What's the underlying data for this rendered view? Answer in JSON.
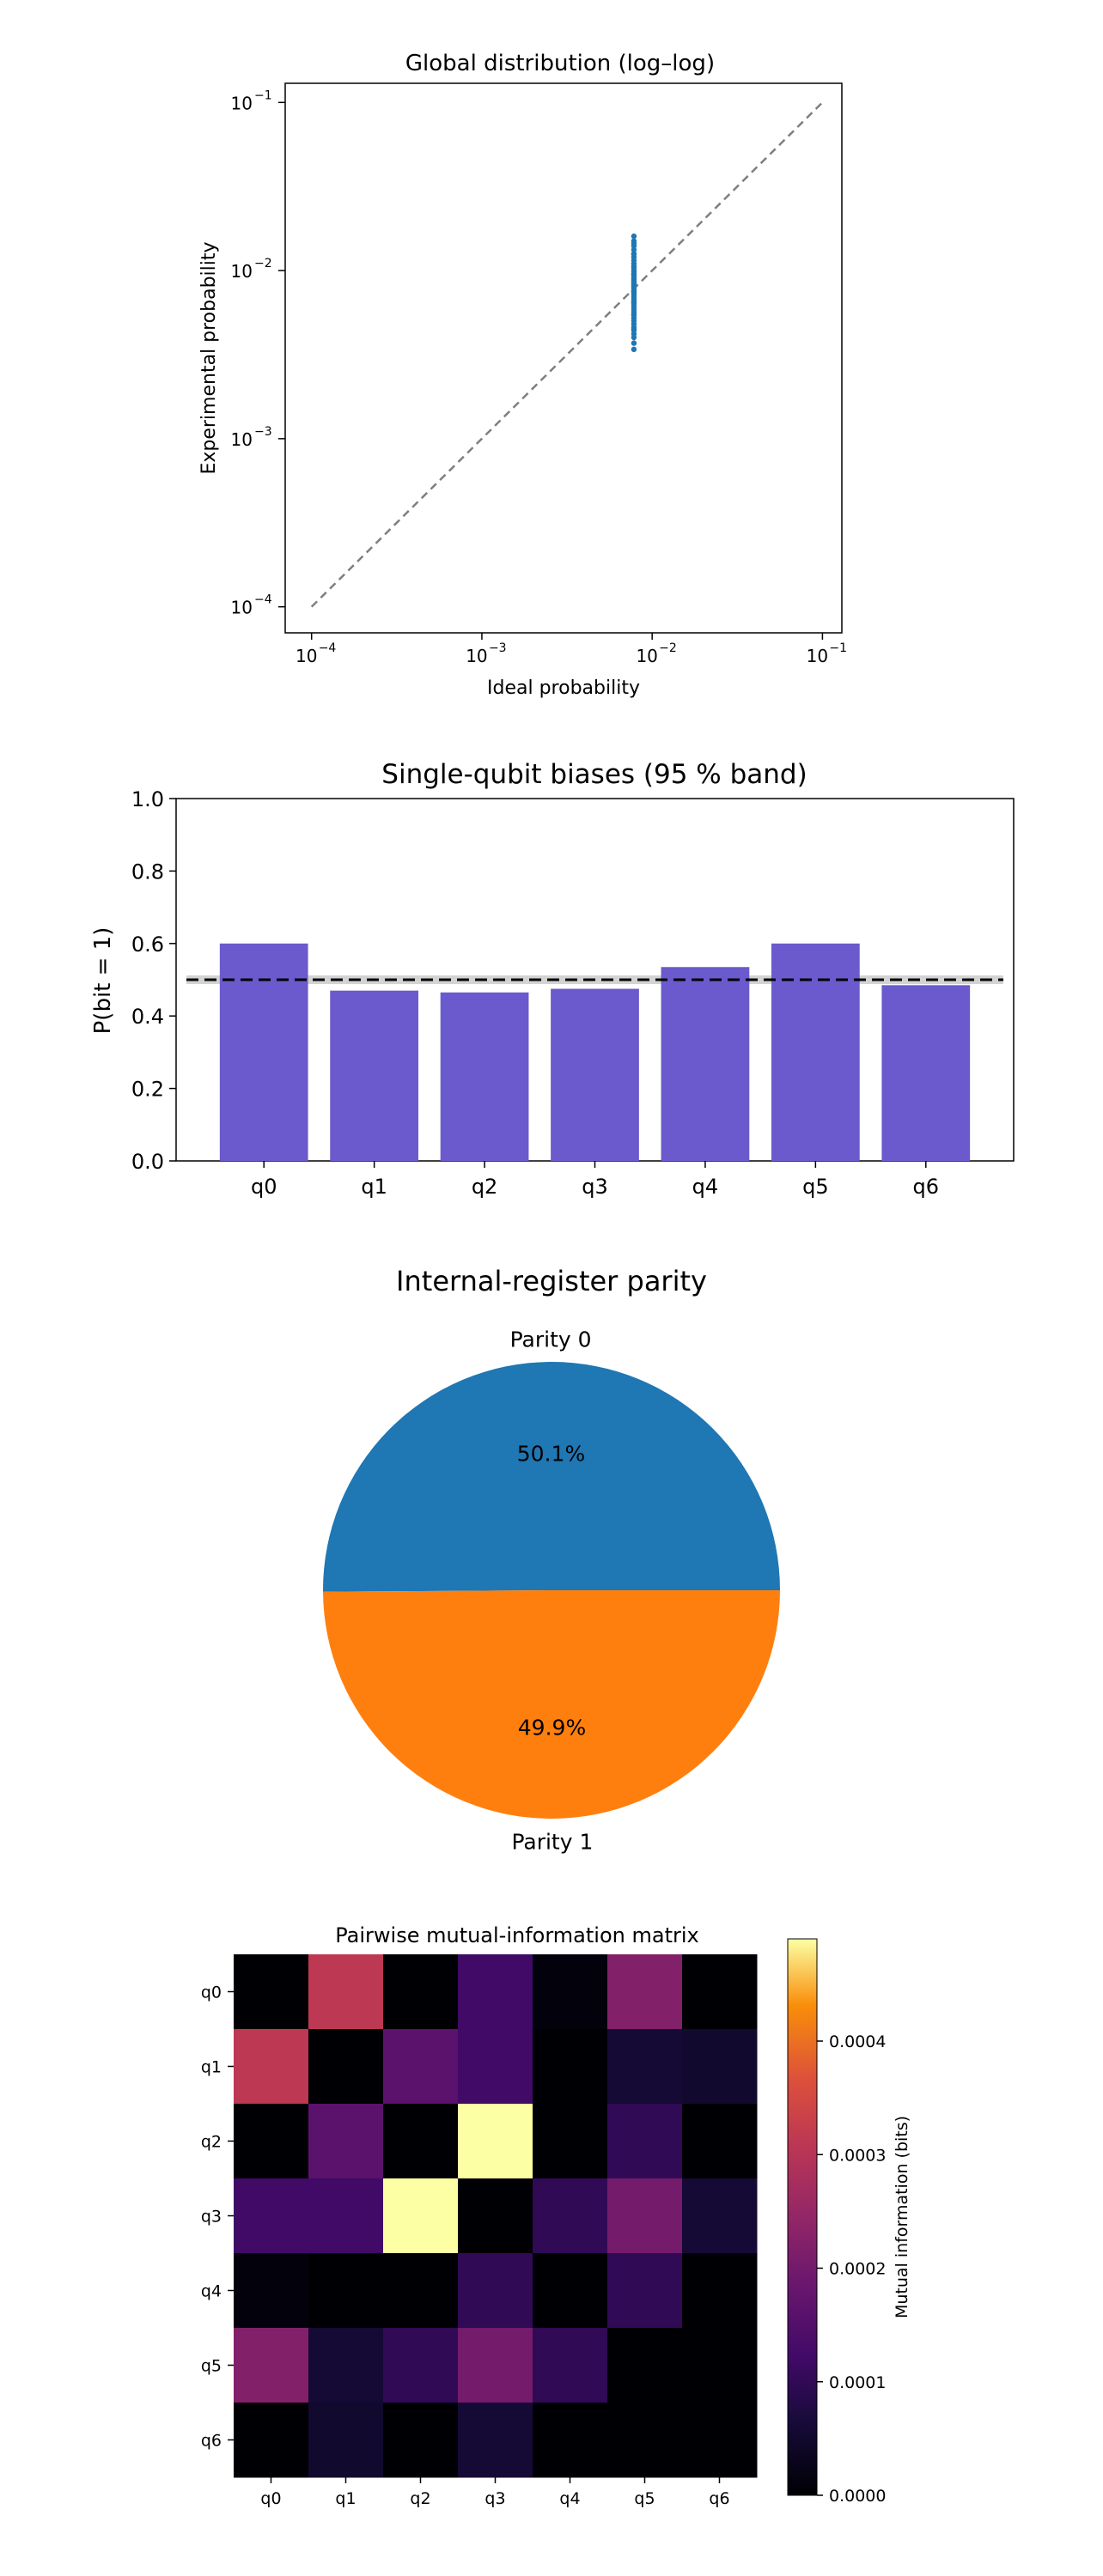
{
  "chart_data": [
    {
      "type": "scatter",
      "title": "Global distribution (log–log)",
      "xlabel": "Ideal probability",
      "ylabel": "Experimental probability",
      "xscale": "log",
      "yscale": "log",
      "xlim": [
        7e-05,
        0.13
      ],
      "ylim": [
        7e-05,
        0.13
      ],
      "xticks": [
        {
          "value": 0.0001,
          "base": "10",
          "exp": "−4"
        },
        {
          "value": 0.001,
          "base": "10",
          "exp": "−3"
        },
        {
          "value": 0.01,
          "base": "10",
          "exp": "−2"
        },
        {
          "value": 0.1,
          "base": "10",
          "exp": "−1"
        }
      ],
      "yticks": [
        {
          "value": 0.0001,
          "base": "10",
          "exp": "−4"
        },
        {
          "value": 0.001,
          "base": "10",
          "exp": "−3"
        },
        {
          "value": 0.01,
          "base": "10",
          "exp": "−2"
        },
        {
          "value": 0.1,
          "base": "10",
          "exp": "−1"
        }
      ],
      "reference_line": {
        "from": [
          0.0001,
          0.0001
        ],
        "to": [
          0.1,
          0.1
        ],
        "style": "dashed",
        "color": "#7f7f7f"
      },
      "point_color": "#1f77b4",
      "x": [
        0.0078125,
        0.0078125,
        0.0078125,
        0.0078125,
        0.0078125,
        0.0078125,
        0.0078125,
        0.0078125,
        0.0078125,
        0.0078125,
        0.0078125,
        0.0078125,
        0.0078125,
        0.0078125,
        0.0078125,
        0.0078125,
        0.0078125,
        0.0078125,
        0.0078125,
        0.0078125,
        0.0078125,
        0.0078125,
        0.0078125,
        0.0078125,
        0.0078125,
        0.0078125,
        0.0078125,
        0.0078125,
        0.0078125,
        0.0078125,
        0.0078125,
        0.0078125,
        0.0078125,
        0.0078125,
        0.0078125,
        0.0078125,
        0.0078125,
        0.0078125,
        0.0078125,
        0.0078125,
        0.0078125,
        0.0078125,
        0.0078125,
        0.0078125,
        0.0078125,
        0.0078125,
        0.0078125,
        0.0078125,
        0.0078125,
        0.0078125
      ],
      "y": [
        0.0034,
        0.0037,
        0.004,
        0.0042,
        0.0044,
        0.0046,
        0.0048,
        0.005,
        0.0052,
        0.0054,
        0.0056,
        0.0058,
        0.006,
        0.0062,
        0.0064,
        0.0066,
        0.0068,
        0.007,
        0.0072,
        0.0074,
        0.0076,
        0.0078,
        0.008,
        0.0082,
        0.0084,
        0.0086,
        0.0088,
        0.009,
        0.0093,
        0.0096,
        0.0099,
        0.0102,
        0.0106,
        0.011,
        0.0115,
        0.012,
        0.0126,
        0.0133,
        0.014,
        0.015,
        0.016,
        0.0045,
        0.0055,
        0.0065,
        0.0075,
        0.0085,
        0.0095,
        0.0105,
        0.0125,
        0.0145
      ]
    },
    {
      "type": "bar",
      "title": "Single-qubit biases (95 % band)",
      "xlabel": "",
      "ylabel": "P(bit = 1)",
      "categories": [
        "q0",
        "q1",
        "q2",
        "q3",
        "q4",
        "q5",
        "q6"
      ],
      "values": [
        0.6,
        0.47,
        0.465,
        0.475,
        0.535,
        0.6,
        0.485
      ],
      "ylim": [
        0,
        1
      ],
      "yticks": [
        "0.0",
        "0.2",
        "0.4",
        "0.6",
        "0.8",
        "1.0"
      ],
      "reference_line": {
        "y": 0.5,
        "style": "dashed",
        "color": "#000000"
      },
      "band": {
        "low": 0.488,
        "high": 0.512,
        "color": "#d3d3d3"
      },
      "bar_color": "#6a5acd"
    },
    {
      "type": "pie",
      "title": "Internal-register parity",
      "labels": [
        "Parity 0",
        "Parity 1"
      ],
      "values": [
        50.1,
        49.9
      ],
      "value_labels": [
        "50.1%",
        "49.9%"
      ],
      "colors": [
        "#1f77b4",
        "#ff7f0e"
      ]
    },
    {
      "type": "heatmap",
      "title": "Pairwise mutual-information matrix",
      "x_categories": [
        "q0",
        "q1",
        "q2",
        "q3",
        "q4",
        "q5",
        "q6"
      ],
      "y_categories": [
        "q0",
        "q1",
        "q2",
        "q3",
        "q4",
        "q5",
        "q6"
      ],
      "colormap": "inferno",
      "vmin": 0,
      "vmax": 0.00049,
      "colorbar_label": "Mutual information (bits)",
      "colorbar_ticks": [
        "0.0000",
        "0.0001",
        "0.0002",
        "0.0003",
        "0.0004"
      ],
      "colorbar_tick_values": [
        0,
        0.0001,
        0.0002,
        0.0003,
        0.0004
      ],
      "matrix": [
        [
          0.0,
          0.00031,
          0.0,
          0.00012,
          1e-05,
          0.00022,
          0.0
        ],
        [
          0.00031,
          0.0,
          0.00016,
          0.00012,
          0.0,
          6e-05,
          5e-05
        ],
        [
          0.0,
          0.00016,
          0.0,
          0.00049,
          0.0,
          0.0001,
          0.0
        ],
        [
          0.00012,
          0.00012,
          0.00049,
          0.0,
          0.0001,
          0.0002,
          6e-05
        ],
        [
          1e-05,
          0.0,
          0.0,
          0.0001,
          0.0,
          0.0001,
          0.0
        ],
        [
          0.00022,
          6e-05,
          0.0001,
          0.0002,
          0.0001,
          0.0,
          0.0
        ],
        [
          0.0,
          5e-05,
          0.0,
          6e-05,
          0.0,
          0.0,
          0.0
        ]
      ]
    }
  ]
}
